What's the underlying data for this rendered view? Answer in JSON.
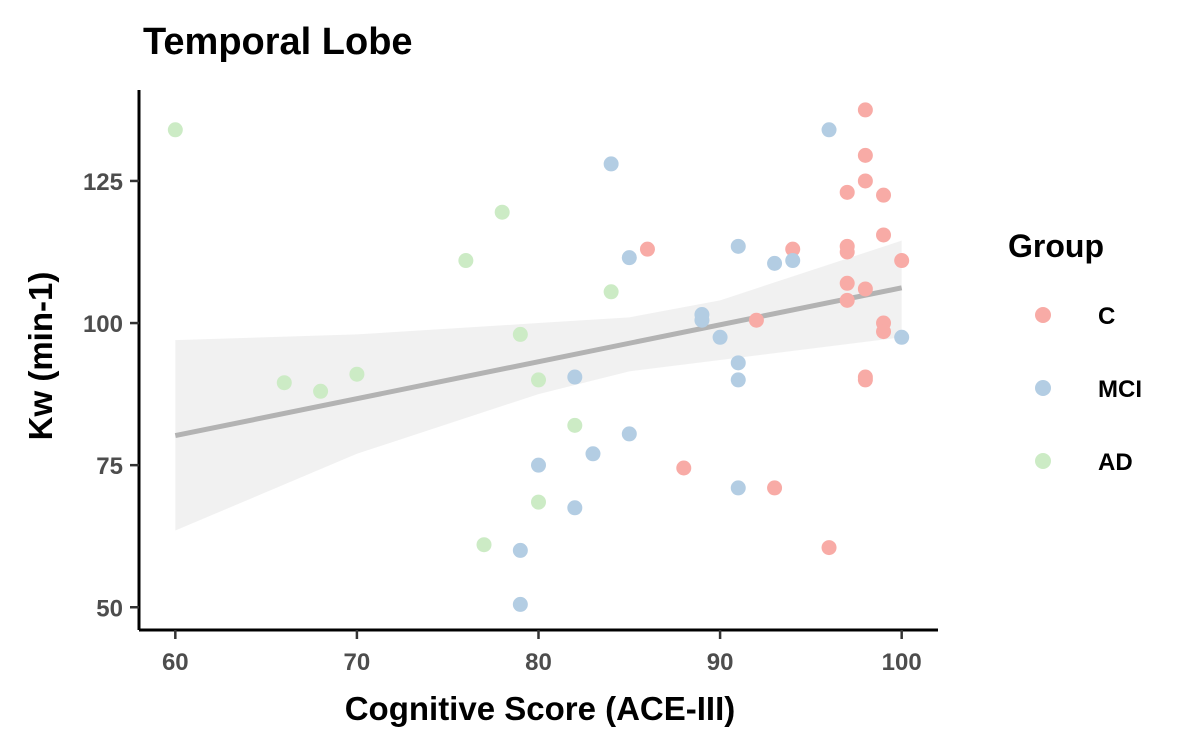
{
  "chart_data": {
    "type": "scatter",
    "title": "Temporal Lobe",
    "xlabel": "Cognitive Score (ACE-III)",
    "ylabel": "Kw (min-1)",
    "xlim": [
      58,
      102
    ],
    "ylim": [
      46,
      141
    ],
    "xticks": [
      60,
      70,
      80,
      90,
      100
    ],
    "yticks": [
      50,
      75,
      100,
      125
    ],
    "grid": false,
    "legend": {
      "title": "Group",
      "position": "right"
    },
    "series": [
      {
        "name": "C",
        "color": "#f8aba6",
        "points": [
          [
            86,
            113
          ],
          [
            88,
            74.5
          ],
          [
            92,
            100.5
          ],
          [
            93,
            71
          ],
          [
            94,
            113
          ],
          [
            96,
            60.5
          ],
          [
            97,
            123
          ],
          [
            97,
            113.5
          ],
          [
            97,
            112.5
          ],
          [
            97,
            107
          ],
          [
            97,
            104
          ],
          [
            98,
            137.5
          ],
          [
            98,
            129.5
          ],
          [
            98,
            125
          ],
          [
            98,
            106
          ],
          [
            98,
            90.5
          ],
          [
            98,
            90
          ],
          [
            99,
            122.5
          ],
          [
            99,
            115.5
          ],
          [
            99,
            100
          ],
          [
            99,
            98.5
          ],
          [
            100,
            111
          ]
        ]
      },
      {
        "name": "MCI",
        "color": "#b3cde3",
        "points": [
          [
            79,
            60
          ],
          [
            79,
            50.5
          ],
          [
            80,
            75
          ],
          [
            82,
            90.5
          ],
          [
            82,
            67.5
          ],
          [
            83,
            77
          ],
          [
            84,
            128
          ],
          [
            85,
            111.5
          ],
          [
            85,
            80.5
          ],
          [
            89,
            101.5
          ],
          [
            89,
            100.5
          ],
          [
            90,
            97.5
          ],
          [
            91,
            113.5
          ],
          [
            91,
            93
          ],
          [
            91,
            90
          ],
          [
            91,
            71
          ],
          [
            93,
            110.5
          ],
          [
            94,
            111
          ],
          [
            96,
            134
          ],
          [
            100,
            97.5
          ]
        ]
      },
      {
        "name": "AD",
        "color": "#ccebc5",
        "points": [
          [
            60,
            134
          ],
          [
            66,
            89.5
          ],
          [
            68,
            88
          ],
          [
            70,
            91
          ],
          [
            76,
            111
          ],
          [
            77,
            61
          ],
          [
            78,
            119.5
          ],
          [
            79,
            98
          ],
          [
            80,
            90
          ],
          [
            80,
            68.5
          ],
          [
            82,
            82
          ],
          [
            84,
            105.5
          ]
        ]
      }
    ],
    "regression": {
      "color": "#b3b3b3",
      "line": [
        [
          60,
          80.2
        ],
        [
          100,
          106.2
        ]
      ],
      "ci": {
        "color": "#efefef",
        "x": [
          60,
          70,
          80,
          85,
          90,
          100
        ],
        "lower": [
          63.5,
          77,
          87.5,
          91.5,
          93.5,
          97.5
        ],
        "upper": [
          97,
          98,
          100,
          101,
          104,
          114.5
        ]
      }
    }
  }
}
